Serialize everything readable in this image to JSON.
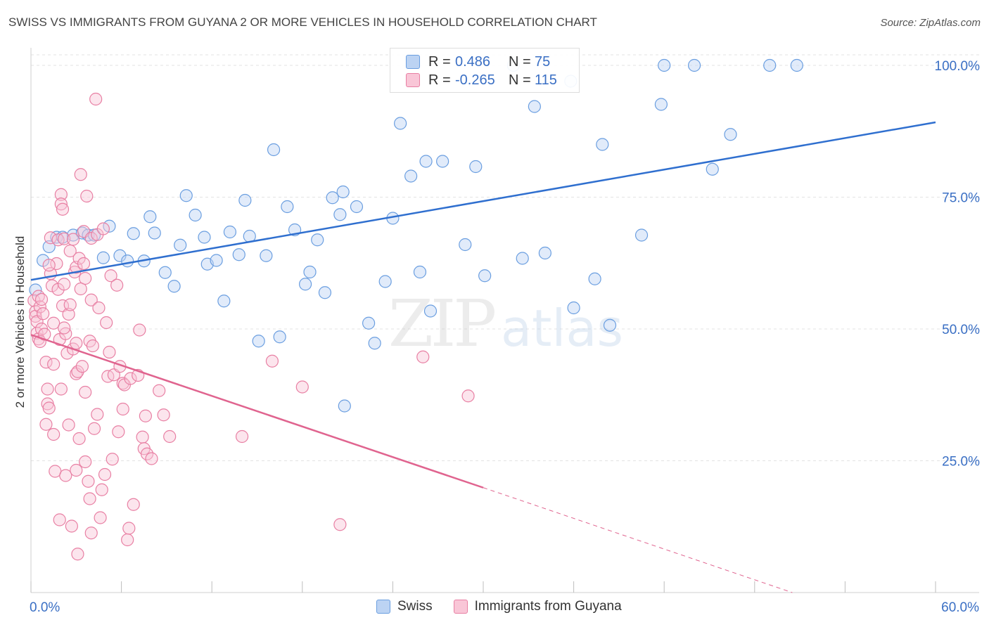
{
  "header": {
    "title": "SWISS VS IMMIGRANTS FROM GUYANA 2 OR MORE VEHICLES IN HOUSEHOLD CORRELATION CHART",
    "source": "Source: ZipAtlas.com"
  },
  "watermark": {
    "zip": "ZIP",
    "atlas": "atlas"
  },
  "legend": {
    "r_label": "R =",
    "n_label": "N =",
    "rows": [
      {
        "r": "0.486",
        "n": "75",
        "color": "#6a9ee0",
        "fill": "#bcd3f3"
      },
      {
        "r": "-0.265",
        "n": "115",
        "color": "#e87fa3",
        "fill": "#f9c6d7"
      }
    ]
  },
  "bottom_legend": [
    {
      "label": "Swiss",
      "color": "#6a9ee0",
      "fill": "#bcd3f3"
    },
    {
      "label": "Immigrants from Guyana",
      "color": "#e87fa3",
      "fill": "#f9c6d7"
    }
  ],
  "chart_data": {
    "type": "scatter",
    "ylabel": "2 or more Vehicles in Household",
    "xlim": [
      0,
      60
    ],
    "ylim": [
      0,
      102
    ],
    "x_tick_labels": [
      {
        "x": 0,
        "label": "0.0%"
      },
      {
        "x": 60,
        "label": "60.0%"
      }
    ],
    "y_tick_labels": [
      {
        "y": 25,
        "label": "25.0%"
      },
      {
        "y": 50,
        "label": "50.0%"
      },
      {
        "y": 75,
        "label": "75.0%"
      },
      {
        "y": 100,
        "label": "100.0%"
      }
    ],
    "grid": true,
    "series": [
      {
        "name": "Swiss",
        "color": "#6a9ee0",
        "fill": "#bcd3f3",
        "trend": {
          "x": [
            0,
            60
          ],
          "y": [
            59.3,
            89.2
          ]
        },
        "points": [
          [
            0.3,
            57.4
          ],
          [
            0.8,
            63.0
          ],
          [
            1.2,
            65.6
          ],
          [
            1.7,
            67.4
          ],
          [
            2.1,
            67.4
          ],
          [
            2.8,
            67.8
          ],
          [
            3.4,
            68.2
          ],
          [
            3.8,
            67.8
          ],
          [
            4.2,
            67.8
          ],
          [
            4.8,
            63.5
          ],
          [
            5.2,
            69.5
          ],
          [
            5.9,
            63.9
          ],
          [
            6.4,
            62.9
          ],
          [
            6.8,
            68.1
          ],
          [
            7.5,
            62.9
          ],
          [
            7.9,
            71.3
          ],
          [
            8.2,
            68.2
          ],
          [
            8.9,
            60.7
          ],
          [
            9.5,
            58.1
          ],
          [
            9.9,
            65.9
          ],
          [
            10.3,
            75.3
          ],
          [
            10.9,
            71.6
          ],
          [
            11.5,
            67.4
          ],
          [
            11.7,
            62.3
          ],
          [
            12.3,
            63.0
          ],
          [
            12.8,
            55.3
          ],
          [
            13.2,
            68.4
          ],
          [
            13.8,
            64.1
          ],
          [
            14.2,
            74.4
          ],
          [
            14.5,
            67.6
          ],
          [
            15.1,
            47.7
          ],
          [
            15.6,
            63.9
          ],
          [
            16.1,
            84.0
          ],
          [
            16.5,
            48.5
          ],
          [
            17.0,
            73.2
          ],
          [
            17.5,
            68.8
          ],
          [
            18.2,
            58.5
          ],
          [
            18.5,
            60.8
          ],
          [
            19.0,
            66.9
          ],
          [
            19.5,
            56.9
          ],
          [
            20.0,
            74.9
          ],
          [
            20.5,
            71.7
          ],
          [
            20.7,
            76.0
          ],
          [
            20.8,
            35.4
          ],
          [
            21.6,
            73.2
          ],
          [
            22.4,
            51.1
          ],
          [
            22.8,
            47.3
          ],
          [
            23.5,
            59.0
          ],
          [
            24.0,
            71.0
          ],
          [
            24.5,
            89.0
          ],
          [
            25.2,
            79.0
          ],
          [
            25.8,
            60.8
          ],
          [
            26.2,
            81.8
          ],
          [
            26.5,
            53.4
          ],
          [
            27.3,
            81.8
          ],
          [
            28.8,
            66.0
          ],
          [
            29.5,
            80.8
          ],
          [
            30.1,
            60.1
          ],
          [
            32.0,
            100.0
          ],
          [
            32.6,
            63.4
          ],
          [
            33.4,
            92.2
          ],
          [
            34.1,
            64.4
          ],
          [
            35.8,
            97.0
          ],
          [
            36.0,
            54.0
          ],
          [
            37.4,
            59.5
          ],
          [
            37.9,
            85.0
          ],
          [
            38.4,
            50.7
          ],
          [
            40.5,
            67.8
          ],
          [
            41.8,
            92.6
          ],
          [
            42.0,
            100.0
          ],
          [
            44.0,
            100.0
          ],
          [
            45.2,
            80.3
          ],
          [
            46.4,
            86.9
          ],
          [
            49.0,
            100.0
          ],
          [
            50.8,
            100.0
          ]
        ]
      },
      {
        "name": "Immigrants from Guyana",
        "color": "#e87fa3",
        "fill": "#f9c6d7",
        "trend_solid": {
          "x": [
            0,
            30
          ],
          "y": [
            48.9,
            19.9
          ]
        },
        "trend_dashed": {
          "x": [
            30,
            50.5
          ],
          "y": [
            19.9,
            0.0
          ]
        },
        "points": [
          [
            0.2,
            55.4
          ],
          [
            0.3,
            53.3
          ],
          [
            0.3,
            52.4
          ],
          [
            0.4,
            51.4
          ],
          [
            0.4,
            49.2
          ],
          [
            0.5,
            48.1
          ],
          [
            0.5,
            56.2
          ],
          [
            0.6,
            54.2
          ],
          [
            0.6,
            47.6
          ],
          [
            0.7,
            50.0
          ],
          [
            0.8,
            52.9
          ],
          [
            0.9,
            49.0
          ],
          [
            1.0,
            43.7
          ],
          [
            1.0,
            31.9
          ],
          [
            1.1,
            38.6
          ],
          [
            1.1,
            35.8
          ],
          [
            1.2,
            35.0
          ],
          [
            1.3,
            60.5
          ],
          [
            1.3,
            67.3
          ],
          [
            1.4,
            58.2
          ],
          [
            1.5,
            43.3
          ],
          [
            1.5,
            51.1
          ],
          [
            1.5,
            30.0
          ],
          [
            1.6,
            23.0
          ],
          [
            1.7,
            62.4
          ],
          [
            1.8,
            66.9
          ],
          [
            1.8,
            57.5
          ],
          [
            1.9,
            48.0
          ],
          [
            1.9,
            13.8
          ],
          [
            2.0,
            38.6
          ],
          [
            2.0,
            75.5
          ],
          [
            2.0,
            73.7
          ],
          [
            2.1,
            72.7
          ],
          [
            2.1,
            54.4
          ],
          [
            2.2,
            67.1
          ],
          [
            2.2,
            58.5
          ],
          [
            2.3,
            49.1
          ],
          [
            2.3,
            22.2
          ],
          [
            2.4,
            45.4
          ],
          [
            2.5,
            31.8
          ],
          [
            2.5,
            52.8
          ],
          [
            2.6,
            54.6
          ],
          [
            2.6,
            64.8
          ],
          [
            2.7,
            12.6
          ],
          [
            2.8,
            67.0
          ],
          [
            2.8,
            46.2
          ],
          [
            2.9,
            60.8
          ],
          [
            3.0,
            41.5
          ],
          [
            3.0,
            61.7
          ],
          [
            3.0,
            23.2
          ],
          [
            3.1,
            7.3
          ],
          [
            3.1,
            41.9
          ],
          [
            3.2,
            29.2
          ],
          [
            3.2,
            63.4
          ],
          [
            3.3,
            57.6
          ],
          [
            3.3,
            79.3
          ],
          [
            3.4,
            42.9
          ],
          [
            3.5,
            62.4
          ],
          [
            3.5,
            68.5
          ],
          [
            3.6,
            59.6
          ],
          [
            3.6,
            24.8
          ],
          [
            3.7,
            75.2
          ],
          [
            3.8,
            21.1
          ],
          [
            3.9,
            47.7
          ],
          [
            3.9,
            17.8
          ],
          [
            4.0,
            55.5
          ],
          [
            4.0,
            67.2
          ],
          [
            4.0,
            11.3
          ],
          [
            4.1,
            46.8
          ],
          [
            4.2,
            31.1
          ],
          [
            4.3,
            93.6
          ],
          [
            4.4,
            67.9
          ],
          [
            4.5,
            54.0
          ],
          [
            4.6,
            14.2
          ],
          [
            4.7,
            19.5
          ],
          [
            4.8,
            69.0
          ],
          [
            4.9,
            22.4
          ],
          [
            5.0,
            51.2
          ],
          [
            5.1,
            41.0
          ],
          [
            5.2,
            45.6
          ],
          [
            5.3,
            60.1
          ],
          [
            5.4,
            25.3
          ],
          [
            5.5,
            41.3
          ],
          [
            5.7,
            58.3
          ],
          [
            5.9,
            42.9
          ],
          [
            6.1,
            39.7
          ],
          [
            6.1,
            34.8
          ],
          [
            6.2,
            39.4
          ],
          [
            6.4,
            10.0
          ],
          [
            6.5,
            12.2
          ],
          [
            6.6,
            40.6
          ],
          [
            6.8,
            16.7
          ],
          [
            7.1,
            41.2
          ],
          [
            7.2,
            49.8
          ],
          [
            7.4,
            29.5
          ],
          [
            7.5,
            27.3
          ],
          [
            7.6,
            33.5
          ],
          [
            7.7,
            26.3
          ],
          [
            8.0,
            25.4
          ],
          [
            8.5,
            38.3
          ],
          [
            8.8,
            33.7
          ],
          [
            9.2,
            29.6
          ],
          [
            14.0,
            29.6
          ],
          [
            16.0,
            43.9
          ],
          [
            18.0,
            39.0
          ],
          [
            20.5,
            12.9
          ],
          [
            26.0,
            44.7
          ],
          [
            29.0,
            37.3
          ],
          [
            0.7,
            55.6
          ],
          [
            1.2,
            62.1
          ],
          [
            2.2,
            50.2
          ],
          [
            3.0,
            47.3
          ],
          [
            3.6,
            38.0
          ],
          [
            4.4,
            33.8
          ],
          [
            5.8,
            30.5
          ]
        ]
      }
    ]
  }
}
